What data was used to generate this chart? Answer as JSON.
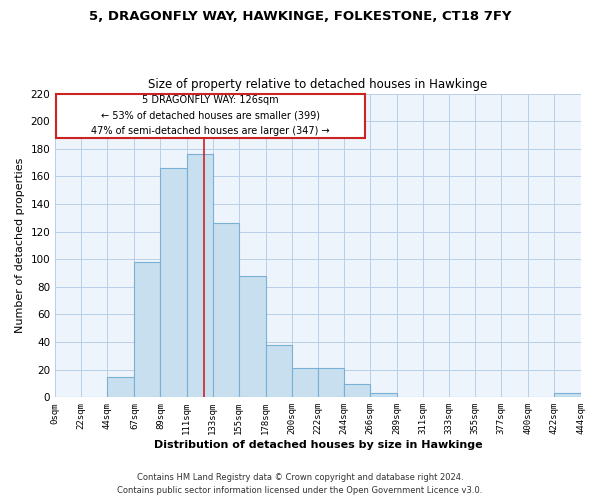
{
  "title": "5, DRAGONFLY WAY, HAWKINGE, FOLKESTONE, CT18 7FY",
  "subtitle": "Size of property relative to detached houses in Hawkinge",
  "xlabel": "Distribution of detached houses by size in Hawkinge",
  "ylabel": "Number of detached properties",
  "footer_line1": "Contains HM Land Registry data © Crown copyright and database right 2024.",
  "footer_line2": "Contains public sector information licensed under the Open Government Licence v3.0.",
  "bar_left_edges": [
    0,
    22,
    44,
    67,
    89,
    111,
    133,
    155,
    178,
    200,
    222,
    244,
    266,
    289,
    311,
    333,
    355,
    377,
    400,
    422
  ],
  "bar_heights": [
    0,
    0,
    15,
    98,
    166,
    176,
    126,
    88,
    38,
    21,
    21,
    10,
    3,
    0,
    0,
    0,
    0,
    0,
    0,
    3
  ],
  "bar_widths": [
    22,
    22,
    23,
    22,
    22,
    22,
    22,
    23,
    22,
    22,
    22,
    22,
    23,
    22,
    22,
    22,
    22,
    23,
    22,
    22
  ],
  "bar_color": "#c8dff0",
  "bar_edge_color": "#7ab0d4",
  "highlight_x": 126,
  "highlight_color": "#cc2222",
  "ann_text_line1": "5 DRAGONFLY WAY: 126sqm",
  "ann_text_line2": "← 53% of detached houses are smaller (399)",
  "ann_text_line3": "47% of semi-detached houses are larger (347) →",
  "xlim": [
    0,
    444
  ],
  "ylim": [
    0,
    220
  ],
  "yticks": [
    0,
    20,
    40,
    60,
    80,
    100,
    120,
    140,
    160,
    180,
    200,
    220
  ],
  "xtick_labels": [
    "0sqm",
    "22sqm",
    "44sqm",
    "67sqm",
    "89sqm",
    "111sqm",
    "133sqm",
    "155sqm",
    "178sqm",
    "200sqm",
    "222sqm",
    "244sqm",
    "266sqm",
    "289sqm",
    "311sqm",
    "333sqm",
    "355sqm",
    "377sqm",
    "400sqm",
    "422sqm",
    "444sqm"
  ],
  "xtick_positions": [
    0,
    22,
    44,
    67,
    89,
    111,
    133,
    155,
    178,
    200,
    222,
    244,
    266,
    289,
    311,
    333,
    355,
    377,
    400,
    422,
    444
  ],
  "background_color": "#ffffff",
  "plot_bg_color": "#eef4fb",
  "grid_color": "#b8cfe8"
}
